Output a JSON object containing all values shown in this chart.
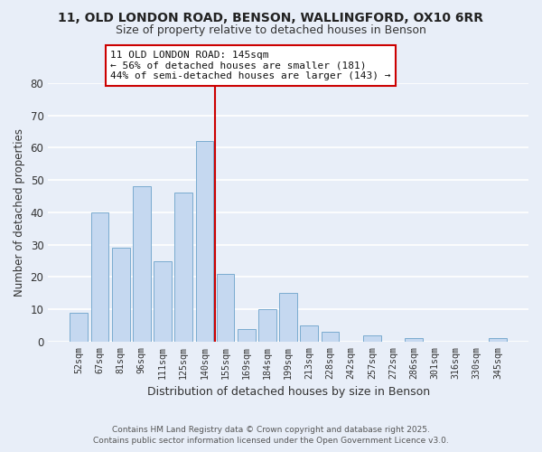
{
  "title_line1": "11, OLD LONDON ROAD, BENSON, WALLINGFORD, OX10 6RR",
  "title_line2": "Size of property relative to detached houses in Benson",
  "xlabel": "Distribution of detached houses by size in Benson",
  "ylabel": "Number of detached properties",
  "categories": [
    "52sqm",
    "67sqm",
    "81sqm",
    "96sqm",
    "111sqm",
    "125sqm",
    "140sqm",
    "155sqm",
    "169sqm",
    "184sqm",
    "199sqm",
    "213sqm",
    "228sqm",
    "242sqm",
    "257sqm",
    "272sqm",
    "286sqm",
    "301sqm",
    "316sqm",
    "330sqm",
    "345sqm"
  ],
  "values": [
    9,
    40,
    29,
    48,
    25,
    46,
    62,
    21,
    4,
    10,
    15,
    5,
    3,
    0,
    2,
    0,
    1,
    0,
    0,
    0,
    1
  ],
  "bar_color": "#c5d8f0",
  "bar_edge_color": "#7aabcf",
  "background_color": "#e8eef8",
  "grid_color": "#ffffff",
  "ylim": [
    0,
    80
  ],
  "yticks": [
    0,
    10,
    20,
    30,
    40,
    50,
    60,
    70,
    80
  ],
  "annotation_line1": "11 OLD LONDON ROAD: 145sqm",
  "annotation_line2": "← 56% of detached houses are smaller (181)",
  "annotation_line3": "44% of semi-detached houses are larger (143) →",
  "vline_x_index": 7.5,
  "vline_color": "#cc0000",
  "footer_line1": "Contains HM Land Registry data © Crown copyright and database right 2025.",
  "footer_line2": "Contains public sector information licensed under the Open Government Licence v3.0."
}
